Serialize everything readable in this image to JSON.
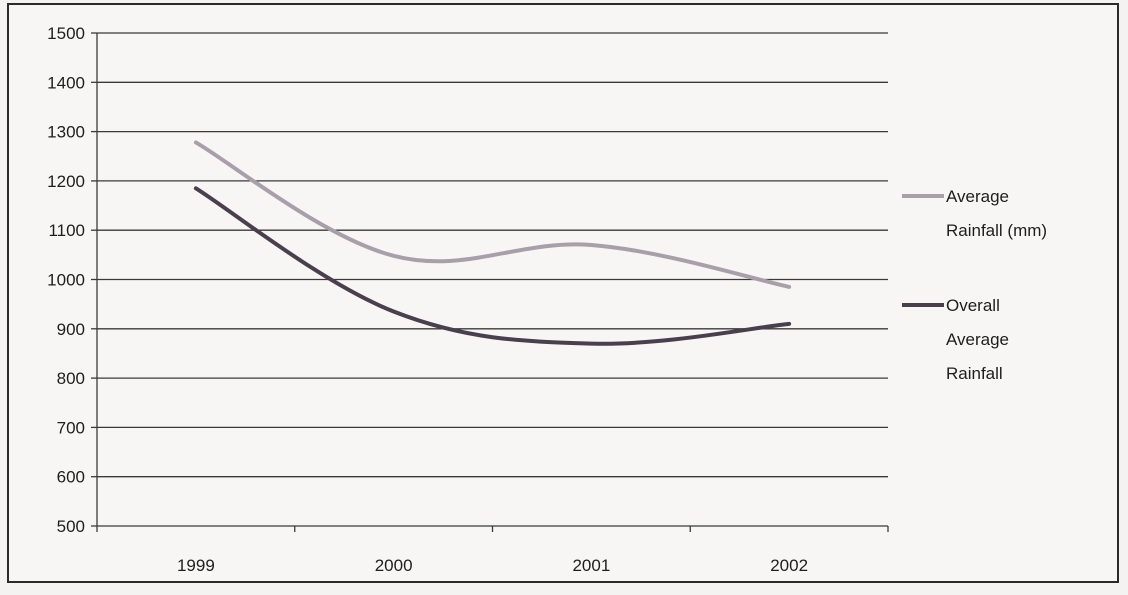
{
  "chart_data": {
    "type": "line",
    "title": "",
    "xlabel": "",
    "ylabel": "",
    "categories": [
      "1999",
      "2000",
      "2001",
      "2002"
    ],
    "ylim": [
      500,
      1500
    ],
    "yticks": [
      500,
      600,
      700,
      800,
      900,
      1000,
      1100,
      1200,
      1300,
      1400,
      1500
    ],
    "grid": "horizontal",
    "smooth": true,
    "legend_position": "right",
    "series": [
      {
        "name_lines": [
          "Average",
          "Rainfall (mm)"
        ],
        "values": [
          1278,
          1048,
          1070,
          985
        ],
        "color": "#a99faa"
      },
      {
        "name_lines": [
          "Overall",
          "Average",
          "Rainfall"
        ],
        "values": [
          1185,
          935,
          870,
          910
        ],
        "color": "#4a3f4c"
      }
    ]
  }
}
